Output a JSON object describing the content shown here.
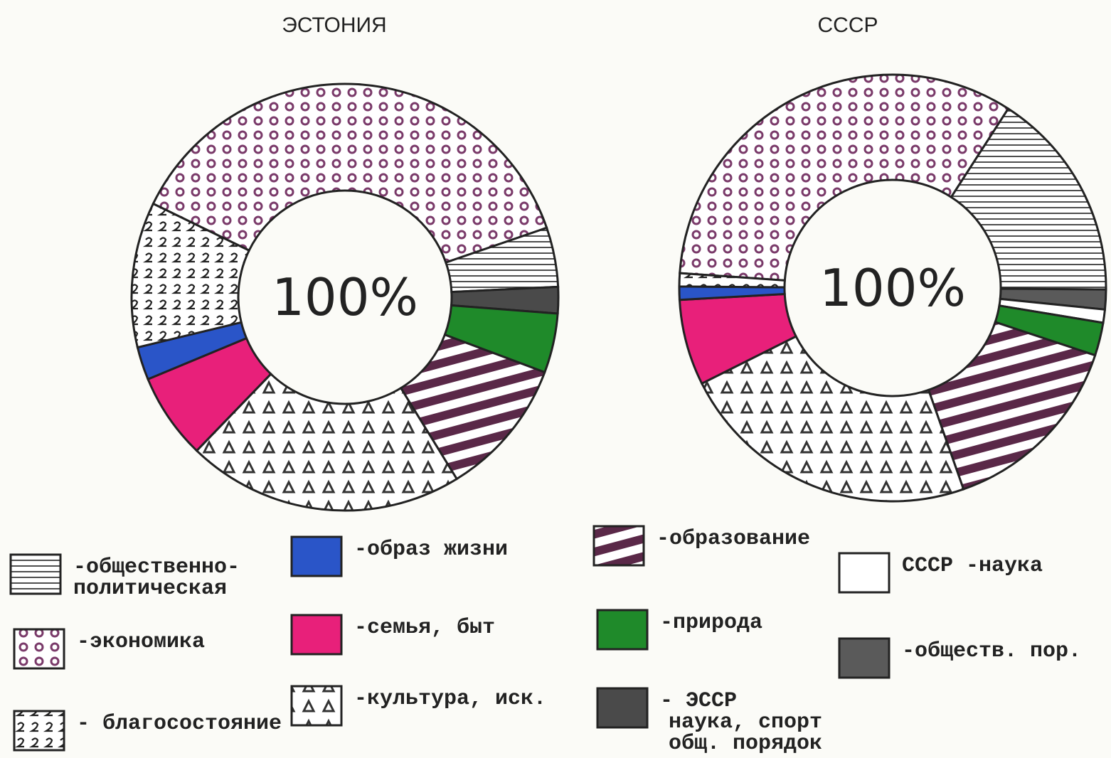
{
  "chart_data": [
    {
      "type": "donut",
      "title": "ЭСТОНИЯ",
      "center_label": "100%",
      "values": [
        37.5,
        4.5,
        2,
        4.5,
        10.5,
        21,
        6.5,
        2.5,
        11
      ],
      "fills": [
        "circles",
        "hlines",
        "#4a4a4a",
        "#1f8a2a",
        "diagstripes",
        "triangles",
        "#e8207a",
        "#2a55c8",
        "zigzag"
      ]
    },
    {
      "type": "donut",
      "title": "СССР",
      "center_label": "100%",
      "values": [
        33,
        16,
        1.5,
        1,
        2.5,
        14.5,
        23,
        6.5,
        1,
        1
      ],
      "fills": [
        "circles",
        "hlines",
        "#5a5a5a",
        "#ffffff",
        "#1f8a2a",
        "diagstripes",
        "triangles",
        "#e8207a",
        "#2a55c8",
        "zigzag"
      ]
    }
  ],
  "legend": [
    {
      "label": [
        "-общественно-",
        "политическая"
      ],
      "fill": "hlines"
    },
    {
      "label": [
        "-экономика"
      ],
      "fill": "circles"
    },
    {
      "label": [
        "- благосостояние"
      ],
      "fill": "zigzag"
    },
    {
      "label": [
        "-образ жизни"
      ],
      "fill": "#2a55c8"
    },
    {
      "label": [
        "-семья, быт"
      ],
      "fill": "#e8207a"
    },
    {
      "label": [
        "-культура, иск."
      ],
      "fill": "triangles"
    },
    {
      "label": [
        "-образование"
      ],
      "fill": "diagstripes"
    },
    {
      "label": [
        "-природа"
      ],
      "fill": "#1f8a2a"
    },
    {
      "label": [
        "- ЭССР",
        "наука, спорт",
        "общ. порядок"
      ],
      "fill": "#4a4a4a"
    },
    {
      "label": [
        "СССР -наука"
      ],
      "fill": "#ffffff"
    },
    {
      "label": [
        "-обществ. пор."
      ],
      "fill": "#5a5a5a"
    }
  ]
}
